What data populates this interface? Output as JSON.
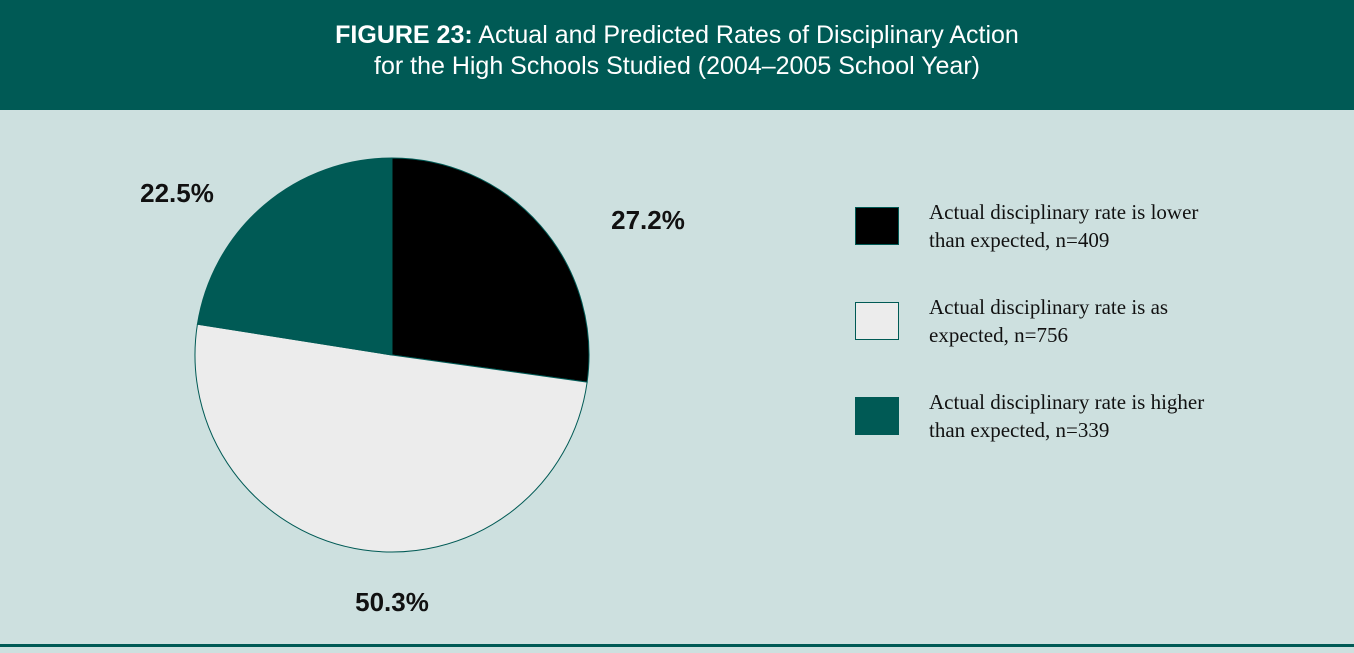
{
  "chart_data": {
    "type": "pie",
    "figure_label": "FIGURE 23:",
    "title": [
      "Actual and Predicted Rates of Disciplinary Action",
      "for the High Schools Studied (2004–2005 School Year)"
    ],
    "categories": [
      "Actual disciplinary rate is lower than expected, n=409",
      "Actual disciplinary rate is as expected, n=756",
      "Actual disciplinary rate is higher than expected, n=339"
    ],
    "values": [
      27.2,
      50.3,
      22.5
    ],
    "value_labels": [
      "27.2%",
      "50.3%",
      "22.5%"
    ],
    "colors": [
      "#000000",
      "#ececec",
      "#005a55"
    ],
    "legend": "right"
  }
}
